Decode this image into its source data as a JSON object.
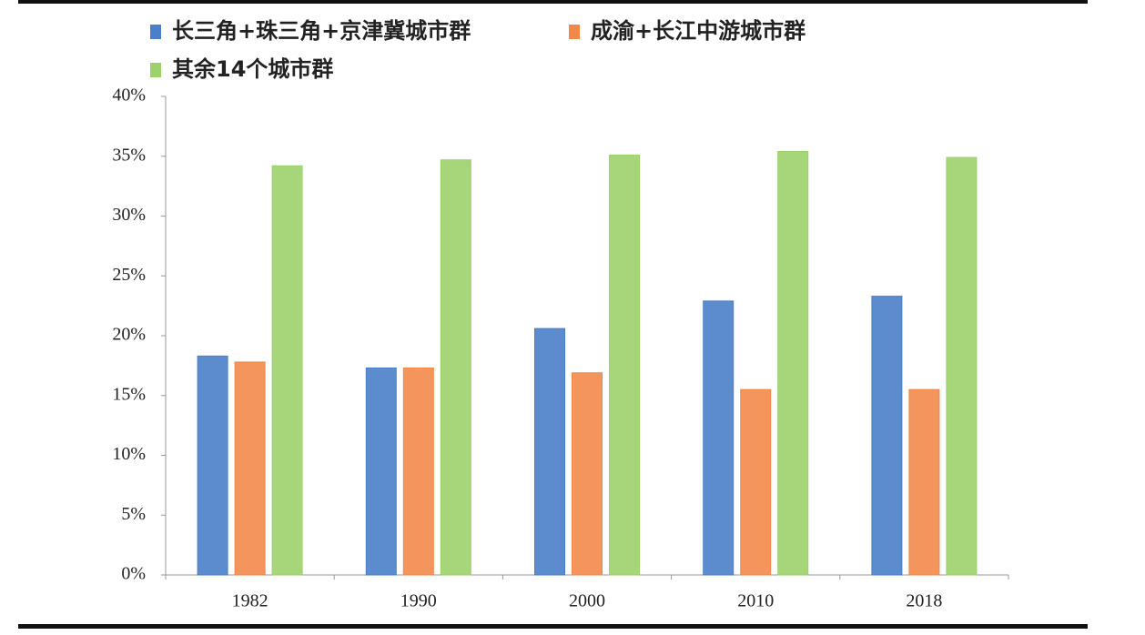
{
  "chart_data": {
    "type": "bar",
    "categories": [
      "1982",
      "1990",
      "2000",
      "2010",
      "2018"
    ],
    "series": [
      {
        "name": "长三角+珠三角+京津冀城市群",
        "color": "#4a80c9",
        "values": [
          18.3,
          17.3,
          20.6,
          22.9,
          23.3
        ]
      },
      {
        "name": "成渝+长江中游城市群",
        "color": "#f2894a",
        "values": [
          17.8,
          17.3,
          16.9,
          15.5,
          15.5
        ]
      },
      {
        "name": "其余14个城市群",
        "color": "#9cd26a",
        "values": [
          34.2,
          34.7,
          35.1,
          35.4,
          34.9
        ]
      }
    ],
    "ylim": [
      0,
      40
    ],
    "yticks": [
      {
        "value": 0,
        "label": "0%"
      },
      {
        "value": 5,
        "label": "5%"
      },
      {
        "value": 10,
        "label": "10%"
      },
      {
        "value": 15,
        "label": "15%"
      },
      {
        "value": 20,
        "label": "20%"
      },
      {
        "value": 25,
        "label": "25%"
      },
      {
        "value": 30,
        "label": "30%"
      },
      {
        "value": 35,
        "label": "35%"
      },
      {
        "value": 40,
        "label": "40%"
      }
    ],
    "grid": false
  }
}
